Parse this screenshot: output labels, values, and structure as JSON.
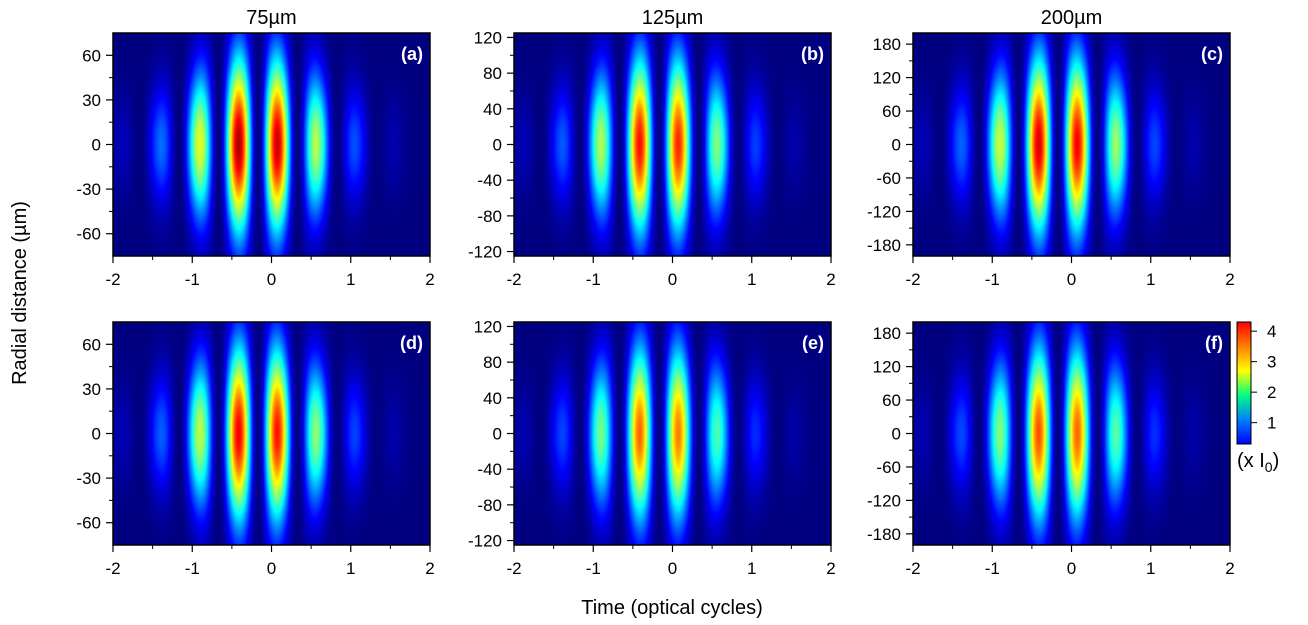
{
  "figure": {
    "ylabel": "Radial distance (µm)",
    "xlabel": "Time (optical cycles)",
    "colorbar": {
      "ticks": [
        1,
        2,
        3,
        4
      ],
      "unit_prefix": "(x I",
      "unit_sub": "0",
      "unit_suffix": ")",
      "colormap": "jet",
      "range": [
        0.3,
        4.3
      ]
    }
  },
  "chart_data": [
    {
      "type": "heatmap",
      "panel": "(a)",
      "title": "75µm",
      "xlim": [
        -2,
        2
      ],
      "ylim": [
        -75,
        75
      ],
      "xticks": [
        -2,
        -1,
        0,
        1,
        2
      ],
      "yticks": [
        -60,
        -30,
        0,
        30,
        60
      ],
      "beam_radius_um": 75,
      "peak_intensity": 4.3,
      "pulse_center_cycles": -0.2,
      "pulse_width_cycles": 1.0,
      "fringe_period_cycles": 0.5,
      "fringe_phase_cycles": 0.08
    },
    {
      "type": "heatmap",
      "panel": "(b)",
      "title": "125µm",
      "xlim": [
        -2,
        2
      ],
      "ylim": [
        -125,
        125
      ],
      "xticks": [
        -2,
        -1,
        0,
        1,
        2
      ],
      "yticks": [
        -120,
        -80,
        -40,
        0,
        40,
        80,
        120
      ],
      "beam_radius_um": 125,
      "peak_intensity": 3.9,
      "pulse_center_cycles": -0.2,
      "pulse_width_cycles": 1.0,
      "fringe_period_cycles": 0.5,
      "fringe_phase_cycles": 0.08
    },
    {
      "type": "heatmap",
      "panel": "(c)",
      "title": "200µm",
      "xlim": [
        -2,
        2
      ],
      "ylim": [
        -200,
        200
      ],
      "xticks": [
        -2,
        -1,
        0,
        1,
        2
      ],
      "yticks": [
        -180,
        -120,
        -60,
        0,
        60,
        120,
        180
      ],
      "beam_radius_um": 200,
      "peak_intensity": 4.1,
      "pulse_center_cycles": -0.2,
      "pulse_width_cycles": 1.0,
      "fringe_period_cycles": 0.5,
      "fringe_phase_cycles": 0.08
    },
    {
      "type": "heatmap",
      "panel": "(d)",
      "title": "",
      "xlim": [
        -2,
        2
      ],
      "ylim": [
        -75,
        75
      ],
      "xticks": [
        -2,
        -1,
        0,
        1,
        2
      ],
      "yticks": [
        -60,
        -30,
        0,
        30,
        60
      ],
      "beam_radius_um": 75,
      "peak_intensity": 4.0,
      "pulse_center_cycles": -0.2,
      "pulse_width_cycles": 1.0,
      "fringe_period_cycles": 0.5,
      "fringe_phase_cycles": 0.08
    },
    {
      "type": "heatmap",
      "panel": "(e)",
      "title": "",
      "xlim": [
        -2,
        2
      ],
      "ylim": [
        -125,
        125
      ],
      "xticks": [
        -2,
        -1,
        0,
        1,
        2
      ],
      "yticks": [
        -120,
        -80,
        -40,
        0,
        40,
        80,
        120
      ],
      "beam_radius_um": 125,
      "peak_intensity": 3.5,
      "pulse_center_cycles": -0.2,
      "pulse_width_cycles": 1.0,
      "fringe_period_cycles": 0.5,
      "fringe_phase_cycles": 0.08
    },
    {
      "type": "heatmap",
      "panel": "(f)",
      "title": "",
      "xlim": [
        -2,
        2
      ],
      "ylim": [
        -200,
        200
      ],
      "xticks": [
        -2,
        -1,
        0,
        1,
        2
      ],
      "yticks": [
        -180,
        -120,
        -60,
        0,
        60,
        120,
        180
      ],
      "beam_radius_um": 200,
      "peak_intensity": 3.6,
      "pulse_center_cycles": -0.2,
      "pulse_width_cycles": 1.0,
      "fringe_period_cycles": 0.5,
      "fringe_phase_cycles": 0.08
    }
  ]
}
